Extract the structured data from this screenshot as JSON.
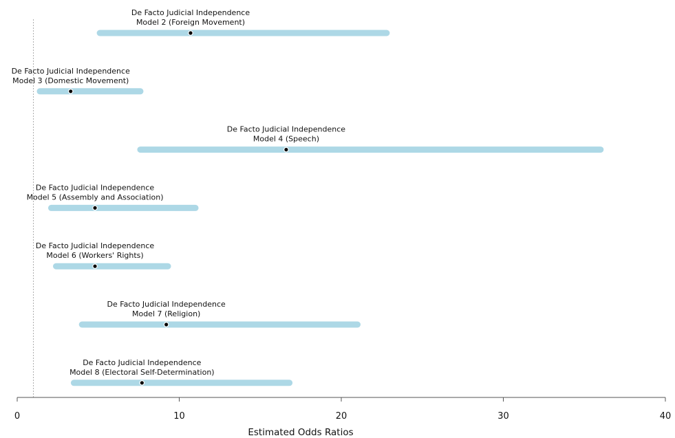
{
  "chart_data": {
    "type": "forest",
    "xlabel": "Estimated Odds Ratios",
    "xlim": [
      0,
      40
    ],
    "xticks": [
      0,
      10,
      20,
      30,
      40
    ],
    "reference_line": 1,
    "colors": {
      "interval": "#add8e6",
      "point": "#000000",
      "reference": "#aaaaaa",
      "axis": "#555555"
    },
    "series": [
      {
        "name": "De Facto Judicial Independence",
        "model": "Model 2 (Foreign Movement)",
        "estimate": 10.7,
        "lower": 5.1,
        "upper": 22.8
      },
      {
        "name": "De Facto Judicial Independence",
        "model": "Model 3 (Domestic Movement)",
        "estimate": 3.3,
        "lower": 1.4,
        "upper": 7.6
      },
      {
        "name": "De Facto Judicial Independence",
        "model": "Model 4 (Speech)",
        "estimate": 16.6,
        "lower": 7.6,
        "upper": 36.0
      },
      {
        "name": "De Facto Judicial Independence",
        "model": "Model 5 (Assembly and Association)",
        "estimate": 4.8,
        "lower": 2.1,
        "upper": 11.0
      },
      {
        "name": "De Facto Judicial Independence",
        "model": "Model 6 (Workers' Rights)",
        "estimate": 4.8,
        "lower": 2.4,
        "upper": 9.3
      },
      {
        "name": "De Facto Judicial Independence",
        "model": "Model 7 (Religion)",
        "estimate": 9.2,
        "lower": 4.0,
        "upper": 21.0
      },
      {
        "name": "De Facto Judicial Independence",
        "model": "Model 8 (Electoral Self-Determination)",
        "estimate": 7.7,
        "lower": 3.5,
        "upper": 16.8
      }
    ]
  }
}
